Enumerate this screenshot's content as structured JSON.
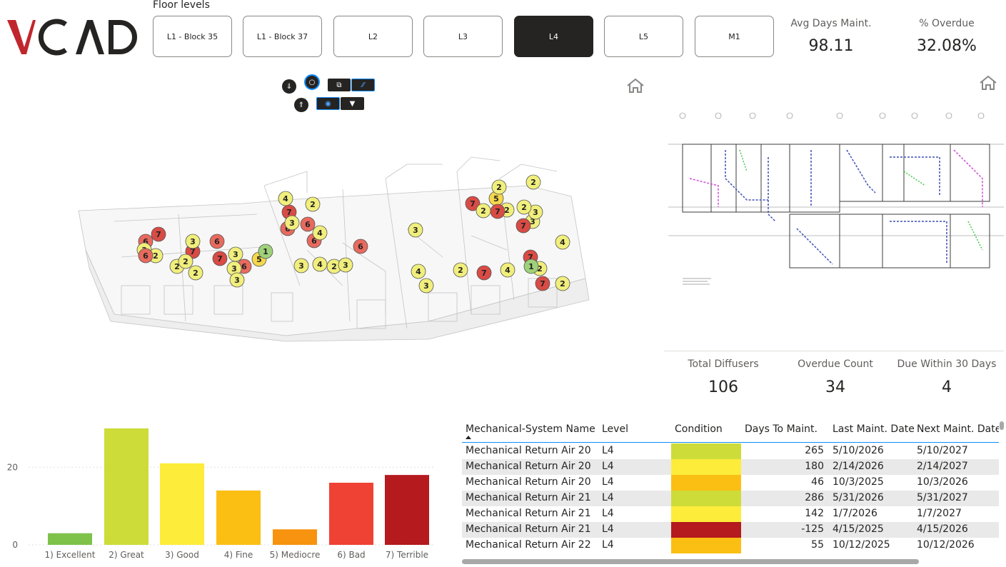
{
  "logo": {
    "text": "VCAD",
    "accent_color": "#c0272d"
  },
  "floors": {
    "title": "Floor levels",
    "buttons": [
      {
        "label": "L1 - Block 35",
        "active": false
      },
      {
        "label": "L1 - Block 37",
        "active": false
      },
      {
        "label": "L2",
        "active": false
      },
      {
        "label": "L3",
        "active": false
      },
      {
        "label": "L4",
        "active": true
      },
      {
        "label": "L5",
        "active": false
      },
      {
        "label": "M1",
        "active": false
      }
    ]
  },
  "kpis": {
    "avg_days_label": "Avg Days Maint.",
    "avg_days_value": "98.11",
    "overdue_pct_label": "% Overdue",
    "overdue_pct_value": "32.08%",
    "total_label": "Total Diffusers",
    "total_value": "106",
    "overdue_count_label": "Overdue Count",
    "overdue_count_value": "34",
    "due30_label": "Due Within 30 Days",
    "due30_value": "4"
  },
  "viewer": {
    "toolbar_icons": [
      "layers-down-icon",
      "circle-select-icon",
      "copy-icon",
      "hatch-icon",
      "layers-up-icon",
      "target-icon",
      "filter-icon"
    ],
    "home_icon": "home-icon",
    "markers": [
      {
        "n": "6",
        "c": "#e86a5e"
      },
      {
        "n": "7",
        "c": "#d94b45"
      },
      {
        "n": "3",
        "c": "#f1ef7c"
      },
      {
        "n": "2",
        "c": "#f1ef7c"
      },
      {
        "n": "6",
        "c": "#e86a5e"
      },
      {
        "n": "7",
        "c": "#d94b45"
      },
      {
        "n": "6",
        "c": "#e86a5e"
      },
      {
        "n": "5",
        "c": "#f5d84a"
      },
      {
        "n": "3",
        "c": "#f1ef7c"
      },
      {
        "n": "3",
        "c": "#f1ef7c"
      },
      {
        "n": "3",
        "c": "#f1ef7c"
      },
      {
        "n": "1",
        "c": "#9fd17a"
      },
      {
        "n": "6",
        "c": "#e86a5e"
      },
      {
        "n": "2",
        "c": "#f1ef7c"
      },
      {
        "n": "7",
        "c": "#d94b45"
      },
      {
        "n": "3",
        "c": "#f1ef7c"
      },
      {
        "n": "2",
        "c": "#f1ef7c"
      },
      {
        "n": "2",
        "c": "#f1ef7c"
      },
      {
        "n": "6",
        "c": "#e86a5e"
      },
      {
        "n": "7",
        "c": "#d94b45"
      },
      {
        "n": "4",
        "c": "#f1ef7c"
      },
      {
        "n": "2",
        "c": "#f1ef7c"
      },
      {
        "n": "3",
        "c": "#f1ef7c"
      },
      {
        "n": "6",
        "c": "#e86a5e"
      },
      {
        "n": "6",
        "c": "#e86a5e"
      },
      {
        "n": "4",
        "c": "#f1ef7c"
      },
      {
        "n": "3",
        "c": "#f1ef7c"
      },
      {
        "n": "4",
        "c": "#f1ef7c"
      },
      {
        "n": "2",
        "c": "#f1ef7c"
      },
      {
        "n": "3",
        "c": "#f1ef7c"
      },
      {
        "n": "6",
        "c": "#e86a5e"
      },
      {
        "n": "3",
        "c": "#f1ef7c"
      },
      {
        "n": "4",
        "c": "#f1ef7c"
      },
      {
        "n": "3",
        "c": "#f1ef7c"
      },
      {
        "n": "2",
        "c": "#f1ef7c"
      },
      {
        "n": "7",
        "c": "#d94b45"
      },
      {
        "n": "4",
        "c": "#f1ef7c"
      },
      {
        "n": "7",
        "c": "#d94b45"
      },
      {
        "n": "5",
        "c": "#f5d84a"
      },
      {
        "n": "3",
        "c": "#f1ef7c"
      },
      {
        "n": "3",
        "c": "#f1ef7c"
      },
      {
        "n": "4",
        "c": "#f1ef7c"
      },
      {
        "n": "2",
        "c": "#f1ef7c"
      },
      {
        "n": "7",
        "c": "#d94b45"
      },
      {
        "n": "2",
        "c": "#f1ef7c"
      },
      {
        "n": "1",
        "c": "#9fd17a"
      },
      {
        "n": "7",
        "c": "#d94b45"
      },
      {
        "n": "2",
        "c": "#f1ef7c"
      },
      {
        "n": "2",
        "c": "#f1ef7c"
      },
      {
        "n": "7",
        "c": "#d94b45"
      },
      {
        "n": "2",
        "c": "#f1ef7c"
      },
      {
        "n": "7",
        "c": "#d94b45"
      },
      {
        "n": "2",
        "c": "#f1ef7c"
      },
      {
        "n": "2",
        "c": "#f1ef7c"
      }
    ]
  },
  "plan_view": {
    "home_icon": "home-icon"
  },
  "chart_data": {
    "type": "bar",
    "categories": [
      "1) Excellent",
      "2) Great",
      "3) Good",
      "4) Fine",
      "5) Mediocre",
      "6) Bad",
      "7) Terrible"
    ],
    "values": [
      3,
      30,
      21,
      14,
      4,
      16,
      18
    ],
    "colors": [
      "#7ec24a",
      "#cddc39",
      "#fdec3a",
      "#fbbf14",
      "#f7930f",
      "#f04135",
      "#b41a1e"
    ],
    "yticks": [
      "0",
      "20"
    ],
    "ylim": [
      0,
      32
    ],
    "grid": true
  },
  "table": {
    "columns": [
      "Mechanical-System Name",
      "Level",
      "Condition",
      "Days To Maint.",
      "Last Maint. Date",
      "Next Maint. Date"
    ],
    "rows": [
      {
        "name": "Mechanical Return Air 20",
        "level": "L4",
        "color": "#cddc39",
        "days": "265",
        "last": "5/10/2026",
        "next": "5/10/2027"
      },
      {
        "name": "Mechanical Return Air 20",
        "level": "L4",
        "color": "#fdec3a",
        "days": "180",
        "last": "2/14/2026",
        "next": "2/14/2027"
      },
      {
        "name": "Mechanical Return Air 20",
        "level": "L4",
        "color": "#fbbf14",
        "days": "46",
        "last": "10/3/2025",
        "next": "10/3/2026"
      },
      {
        "name": "Mechanical Return Air 21",
        "level": "L4",
        "color": "#cddc39",
        "days": "286",
        "last": "5/31/2026",
        "next": "5/31/2027"
      },
      {
        "name": "Mechanical Return Air 21",
        "level": "L4",
        "color": "#fdec3a",
        "days": "142",
        "last": "1/7/2026",
        "next": "1/7/2027"
      },
      {
        "name": "Mechanical Return Air 21",
        "level": "L4",
        "color": "#b41a1e",
        "days": "-125",
        "last": "4/15/2025",
        "next": "4/15/2026"
      },
      {
        "name": "Mechanical Return Air 22",
        "level": "L4",
        "color": "#fbbf14",
        "days": "55",
        "last": "10/12/2025",
        "next": "10/12/2026"
      }
    ]
  }
}
